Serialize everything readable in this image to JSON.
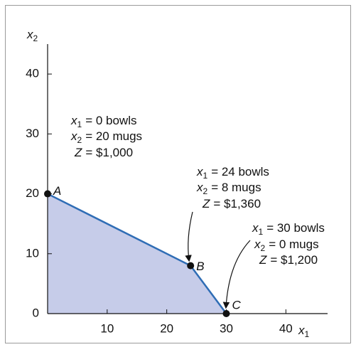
{
  "chart_data": {
    "type": "lp-region",
    "x_label": {
      "var": "x",
      "sub": "1"
    },
    "y_label": {
      "var": "x",
      "sub": "2"
    },
    "xlim": [
      0,
      47
    ],
    "ylim": [
      0,
      45
    ],
    "xticks": [
      10,
      20,
      30,
      40
    ],
    "yticks": [
      0,
      10,
      20,
      30,
      40
    ],
    "line_color": "#2f6db5",
    "fill_color": "#c6cce9",
    "series": [
      {
        "name": "Feasible region",
        "x": [
          0,
          24,
          30
        ],
        "values": [
          20,
          8,
          0
        ],
        "point_labels": [
          "A",
          "B",
          "C"
        ]
      }
    ],
    "annotations": [
      {
        "lines": [
          {
            "var": "x",
            "sub": "1",
            "text": "= 0 bowls"
          },
          {
            "var": "x",
            "sub": "2",
            "text": "= 20 mugs"
          },
          {
            "var": "Z",
            "text": "= $1,000"
          }
        ]
      },
      {
        "lines": [
          {
            "var": "x",
            "sub": "1",
            "text": "= 24 bowls"
          },
          {
            "var": "x",
            "sub": "2",
            "text": "= 8 mugs"
          },
          {
            "var": "Z",
            "text": "= $1,360"
          }
        ]
      },
      {
        "lines": [
          {
            "var": "x",
            "sub": "1",
            "text": "= 30 bowls"
          },
          {
            "var": "x",
            "sub": "2",
            "text": "= 0 mugs"
          },
          {
            "var": "Z",
            "text": "= $1,200"
          }
        ]
      }
    ]
  }
}
